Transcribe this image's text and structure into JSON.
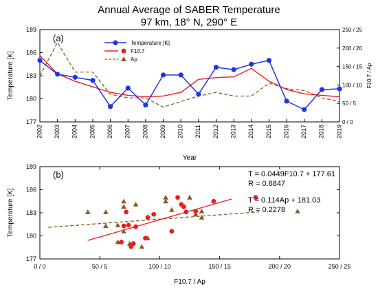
{
  "figure": {
    "title_line1": "Annual Average of SABER Temperature",
    "title_line2": "97 km, 18° N, 290° E"
  },
  "chart_data": [
    {
      "type": "line",
      "panel_label": "(a)",
      "xlabel": "Year",
      "ylabel": "Temperature [K]",
      "ylabel_right": "F10.7 / Ap",
      "x": [
        2002,
        2003,
        2004,
        2005,
        2006,
        2007,
        2008,
        2009,
        2010,
        2011,
        2012,
        2013,
        2014,
        2015,
        2016,
        2017,
        2018,
        2019
      ],
      "xlim": [
        2002,
        2019
      ],
      "ylim": [
        177,
        189
      ],
      "yticks": [
        "177",
        "180",
        "183",
        "186",
        "189"
      ],
      "y2ticks": [
        "0 / 0",
        "50 / 5",
        "100 / 10",
        "150 / 15",
        "200 / 20",
        "250 / 25"
      ],
      "y2lim": [
        0,
        250
      ],
      "legend_position": "top-center",
      "series": [
        {
          "name": "Temperature [K]",
          "axis": "left",
          "color": "#1f35e0",
          "values": [
            185.0,
            183.2,
            182.8,
            182.4,
            179.0,
            181.4,
            179.2,
            183.1,
            183.1,
            180.6,
            184.1,
            183.8,
            184.5,
            185.0,
            179.7,
            178.6,
            181.2,
            181.3
          ]
        },
        {
          "name": "F10.7",
          "axis": "right",
          "color": "#ee1c1c",
          "values": [
            180,
            130,
            110,
            95,
            80,
            72,
            68,
            70,
            80,
            115,
            120,
            122,
            145,
            110,
            88,
            76,
            72,
            68
          ]
        },
        {
          "name": "Ap",
          "axis": "right",
          "color": "#8b5a1e",
          "values": [
            12.5,
            21.5,
            13.5,
            13.5,
            7.5,
            6.5,
            6.5,
            4.0,
            5.5,
            7.0,
            8.0,
            7.0,
            7.0,
            10.5,
            9.0,
            8.5,
            6.5,
            5.5
          ]
        }
      ]
    },
    {
      "type": "scatter",
      "panel_label": "(b)",
      "xlabel": "F10.7 / Ap",
      "ylabel": "Temperature [K]",
      "xlim": [
        0,
        250
      ],
      "ylim": [
        177,
        189
      ],
      "xticks": [
        "0 / 0",
        "50 / 5",
        "100 / 10",
        "150 / 15",
        "200 / 20",
        "250 / 25"
      ],
      "yticks": [
        "177",
        "180",
        "183",
        "186",
        "189"
      ],
      "f107_points": {
        "color": "#ee1c1c",
        "x": [
          68,
          70,
          72,
          74,
          76,
          78,
          80,
          88,
          90,
          95,
          110,
          115,
          118,
          120,
          122,
          130,
          145,
          180
        ],
        "y": [
          179.2,
          181.3,
          183.1,
          181.4,
          178.6,
          179.0,
          181.2,
          179.7,
          182.4,
          182.8,
          180.6,
          185.0,
          184.1,
          183.8,
          183.1,
          183.2,
          184.5,
          185.0
        ]
      },
      "ap_points": {
        "color": "#8b5a1e",
        "x": [
          4.0,
          5.5,
          5.5,
          6.5,
          6.5,
          7.0,
          7.0,
          7.0,
          7.5,
          8.0,
          8.5,
          9.0,
          10.5,
          10.5,
          11.0,
          12.5,
          13.0,
          13.5,
          13.5,
          21.5
        ],
        "y": [
          183.1,
          181.3,
          183.1,
          181.4,
          179.2,
          184.5,
          183.8,
          180.6,
          179.0,
          184.1,
          178.6,
          179.7,
          185.0,
          184.5,
          183.4,
          185.0,
          182.8,
          182.4,
          183.2,
          183.2
        ]
      },
      "fit_lines": [
        {
          "name": "F10.7 fit",
          "color": "#ee1c1c",
          "slope": 0.0449,
          "intercept": 177.61,
          "x_range": [
            40,
            160
          ],
          "dashed": false
        },
        {
          "name": "Ap fit",
          "color": "#8b5a1e",
          "slope": 0.114,
          "intercept": 181.03,
          "x_range": [
            0.7,
            18.3
          ],
          "scale_x": 10,
          "dashed": true
        }
      ],
      "annotations": [
        {
          "eq": "T = 0.0449F10.7 + 177.61",
          "r": "R = 0.6847"
        },
        {
          "eq": "T = 0.114Ap + 181.03",
          "r": "R = 0.2278"
        }
      ]
    }
  ]
}
